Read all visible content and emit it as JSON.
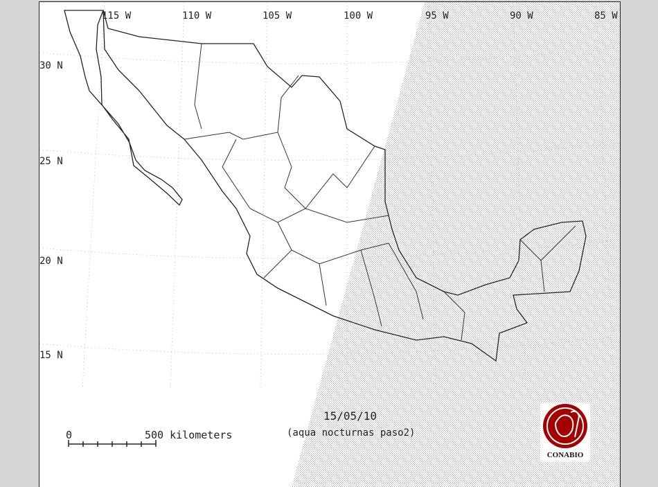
{
  "map": {
    "longitude_labels": [
      "115 W",
      "110 W",
      "105 W",
      "100 W",
      "95 W",
      "90 W",
      "85 W"
    ],
    "latitude_labels": [
      "30 N",
      "25 N",
      "20 N",
      "15 N"
    ],
    "date": "15/05/10",
    "subtitle": "(aqua nocturnas paso2)",
    "scale_bar": {
      "start_label": "0",
      "end_label": "500 kilometers"
    },
    "logo": {
      "text": "CONABIO",
      "color": "#a50000"
    },
    "colors": {
      "background": "#d6d6d6",
      "land_outline": "#222222",
      "swath_stipple": "#c8c8c8"
    }
  }
}
